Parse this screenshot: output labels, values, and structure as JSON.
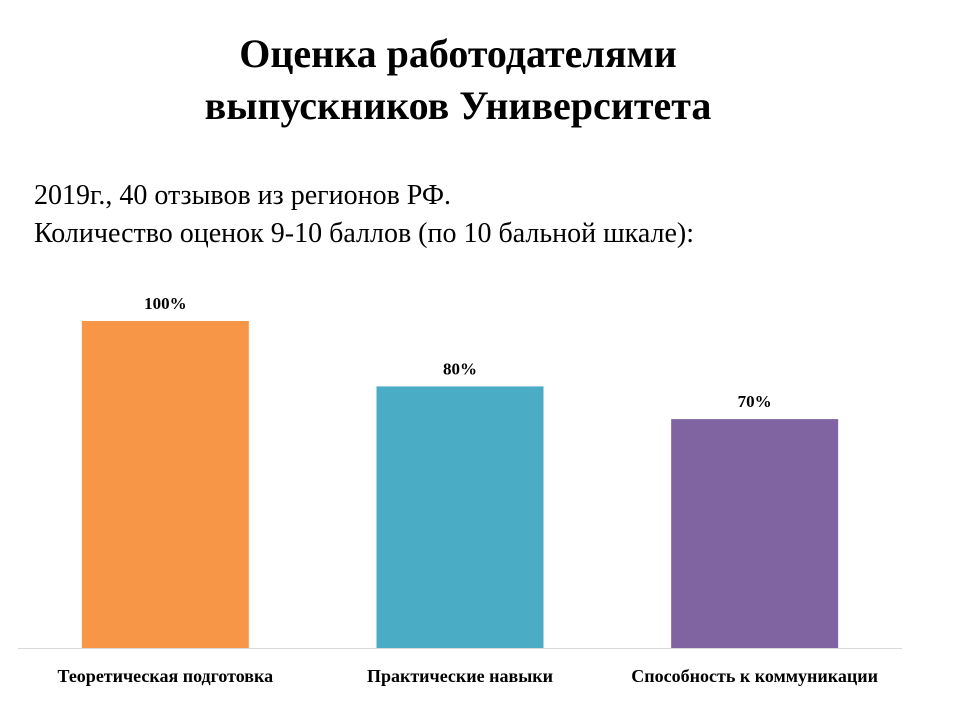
{
  "title_line1": "Оценка работодателями",
  "title_line2": "выпускников Университета",
  "subtitle_line1": "2019г., 40 отзывов из регионов РФ.",
  "subtitle_line2": "Количество оценок 9-10 баллов (по 10 бальной шкале):",
  "chart_data": {
    "type": "bar",
    "categories": [
      "Теоретическая подготовка",
      "Практические навыки",
      "Способность к коммуникации"
    ],
    "values": [
      100,
      80,
      70
    ],
    "data_labels": [
      "100%",
      "80%",
      "70%"
    ],
    "colors": [
      "#F79646",
      "#4BACC6",
      "#8064A2"
    ],
    "ylim": [
      0,
      100
    ],
    "grid": false,
    "legend": "none",
    "xlabel": "",
    "ylabel": ""
  }
}
